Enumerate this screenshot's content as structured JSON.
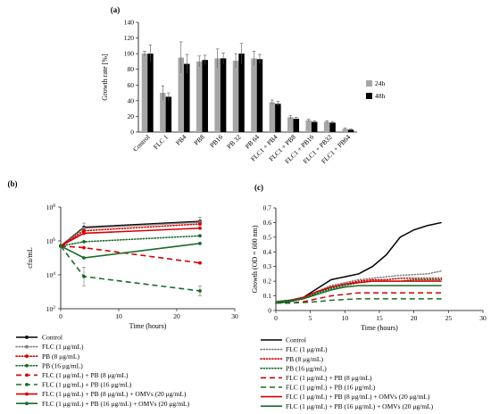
{
  "panels": {
    "a": "(a)",
    "b": "(b)",
    "c": "(c)"
  },
  "chart_data": [
    {
      "id": "a",
      "type": "bar",
      "title": "",
      "xlabel": "",
      "ylabel": "Growth rate [%]",
      "ylim": [
        0,
        140
      ],
      "yticks": [
        0,
        20,
        40,
        60,
        80,
        100,
        120,
        140
      ],
      "categories": [
        "Control",
        "FLC 1",
        "PB4",
        "PB8",
        "PB16",
        "PB 32",
        "PB 64",
        "FLC1 + PB4",
        "FLC1 + PB8",
        "FLC1 + PB16",
        "FLC1 + PB32",
        "FLC1 + PB64"
      ],
      "series": [
        {
          "name": "24h",
          "color": "#a6a6a6",
          "values": [
            100,
            50,
            95,
            90,
            94,
            91,
            94,
            38,
            19,
            15,
            13,
            4
          ],
          "errors": [
            3,
            9,
            20,
            7,
            12,
            9,
            9,
            3,
            2,
            1.5,
            1.5,
            1
          ]
        },
        {
          "name": "48h",
          "color": "#000000",
          "values": [
            100,
            45,
            87,
            92,
            94,
            100,
            93,
            36,
            17,
            13,
            12,
            3
          ],
          "errors": [
            11,
            5,
            12,
            6,
            7,
            13,
            6,
            3,
            2,
            1.5,
            1.5,
            1
          ]
        }
      ],
      "legend_position": "right"
    },
    {
      "id": "b",
      "type": "line",
      "xlabel": "Time (hours)",
      "ylabel": "cfu/mL",
      "xlim": [
        0,
        30
      ],
      "xticks": [
        0,
        10,
        20,
        30
      ],
      "ylim_log10": [
        2,
        8
      ],
      "yticks": [
        {
          "base": "10",
          "exp": "2",
          "value": 2
        },
        {
          "base": "10",
          "exp": "4",
          "value": 4
        },
        {
          "base": "10",
          "exp": "6",
          "value": 6
        },
        {
          "base": "10",
          "exp": "8",
          "value": 8
        }
      ],
      "x": [
        0,
        4,
        24
      ],
      "series": [
        {
          "name": "Control",
          "color": "#000000",
          "dash": "solid",
          "marker": "circle",
          "values_log10": [
            5.7,
            6.8,
            7.15
          ],
          "err": [
            0,
            0.25,
            0.25
          ]
        },
        {
          "name": "FLC (1 μg/mL)",
          "color": "#7f7f7f",
          "dash": "dots",
          "marker": "circle",
          "values_log10": [
            5.7,
            6.75,
            7.1
          ],
          "err": [
            0,
            0,
            0
          ]
        },
        {
          "name": "PB (8 μg/mL)",
          "color": "#d40000",
          "dash": "dots",
          "marker": "circle",
          "values_log10": [
            5.7,
            6.6,
            7.0
          ],
          "err": [
            0,
            0,
            0
          ]
        },
        {
          "name": "PB (16 μg/mL)",
          "color": "#1a6b2a",
          "dash": "dots",
          "marker": "circle",
          "values_log10": [
            5.7,
            5.95,
            6.3
          ],
          "err": [
            0,
            0,
            0
          ]
        },
        {
          "name": "FLC (1 μg/mL) + PB (8 μg/mL)",
          "color": "#d40000",
          "dash": "dash",
          "marker": "circle",
          "values_log10": [
            5.7,
            5.6,
            4.7
          ],
          "err": [
            0,
            0,
            0
          ]
        },
        {
          "name": "FLC (1 μg/mL) + PB (16 μg/mL)",
          "color": "#1a6b2a",
          "dash": "dash",
          "marker": "circle",
          "values_log10": [
            5.7,
            3.9,
            3.05
          ],
          "err": [
            0,
            0.55,
            0.3
          ]
        },
        {
          "name": "FLC (1 μg/mL) + PB (8 μg/mL) + OMVs (20 μg/mL)",
          "color": "#d40000",
          "dash": "solid",
          "marker": "circle",
          "values_log10": [
            5.7,
            6.45,
            6.75
          ],
          "err": [
            0,
            0,
            0
          ]
        },
        {
          "name": "FLC (1 μg/mL) + PB (16 μg/mL) + OMVs (20 μg/mL)",
          "color": "#1a6b2a",
          "dash": "solid",
          "marker": "circle",
          "values_log10": [
            5.7,
            5.0,
            5.85
          ],
          "err": [
            0,
            0,
            0
          ]
        }
      ],
      "legend_position": "bottom"
    },
    {
      "id": "c",
      "type": "line",
      "xlabel": "Time (hours)",
      "ylabel": "Growth (OD = 600 nm)",
      "xlim": [
        0,
        30
      ],
      "xticks": [
        0,
        5,
        10,
        15,
        20,
        25,
        30
      ],
      "ylim": [
        0,
        0.7
      ],
      "yticks": [
        0,
        0.1,
        0.2,
        0.3,
        0.4,
        0.5,
        0.6,
        0.7
      ],
      "x": [
        0,
        2,
        4,
        6,
        8,
        10,
        12,
        14,
        16,
        18,
        20,
        22,
        24
      ],
      "series": [
        {
          "name": "Control",
          "color": "#000000",
          "dash": "solid",
          "values": [
            0.05,
            0.06,
            0.09,
            0.15,
            0.21,
            0.23,
            0.25,
            0.3,
            0.38,
            0.5,
            0.55,
            0.58,
            0.6
          ]
        },
        {
          "name": "FLC (1 μg/mL)",
          "color": "#7f7f7f",
          "dash": "dots",
          "values": [
            0.05,
            0.06,
            0.08,
            0.13,
            0.17,
            0.19,
            0.21,
            0.22,
            0.23,
            0.24,
            0.245,
            0.25,
            0.27
          ]
        },
        {
          "name": "PB (8 μg/mL)",
          "color": "#d40000",
          "dash": "dots",
          "values": [
            0.05,
            0.06,
            0.08,
            0.12,
            0.16,
            0.18,
            0.2,
            0.21,
            0.21,
            0.22,
            0.22,
            0.22,
            0.22
          ]
        },
        {
          "name": "PB (16 μg/mL)",
          "color": "#1a6b2a",
          "dash": "dots",
          "values": [
            0.05,
            0.06,
            0.08,
            0.12,
            0.15,
            0.17,
            0.19,
            0.2,
            0.2,
            0.2,
            0.21,
            0.21,
            0.21
          ]
        },
        {
          "name": "FLC (1 μg/mL) + PB (8 μg/mL)",
          "color": "#d40000",
          "dash": "dash",
          "values": [
            0.05,
            0.05,
            0.06,
            0.08,
            0.1,
            0.11,
            0.12,
            0.12,
            0.12,
            0.12,
            0.12,
            0.12,
            0.12
          ]
        },
        {
          "name": "FLC (1 μg/mL) + PB (16 μg/mL)",
          "color": "#1a6b2a",
          "dash": "dash",
          "values": [
            0.05,
            0.05,
            0.055,
            0.06,
            0.07,
            0.075,
            0.08,
            0.08,
            0.08,
            0.08,
            0.08,
            0.08,
            0.08
          ]
        },
        {
          "name": "FLC (1 μg/mL) + PB (8 μg/mL) + OMVs (20 μg/mL)",
          "color": "#d40000",
          "dash": "solid",
          "values": [
            0.06,
            0.07,
            0.09,
            0.13,
            0.16,
            0.18,
            0.19,
            0.2,
            0.2,
            0.2,
            0.2,
            0.2,
            0.2
          ]
        },
        {
          "name": "FLC (1 μg/mL) + PB (16 μg/mL) + OMVs (20 μg/mL)",
          "color": "#1a6b2a",
          "dash": "solid",
          "values": [
            0.06,
            0.07,
            0.08,
            0.11,
            0.14,
            0.16,
            0.17,
            0.17,
            0.17,
            0.17,
            0.17,
            0.17,
            0.17
          ]
        }
      ],
      "legend_position": "bottom"
    }
  ]
}
